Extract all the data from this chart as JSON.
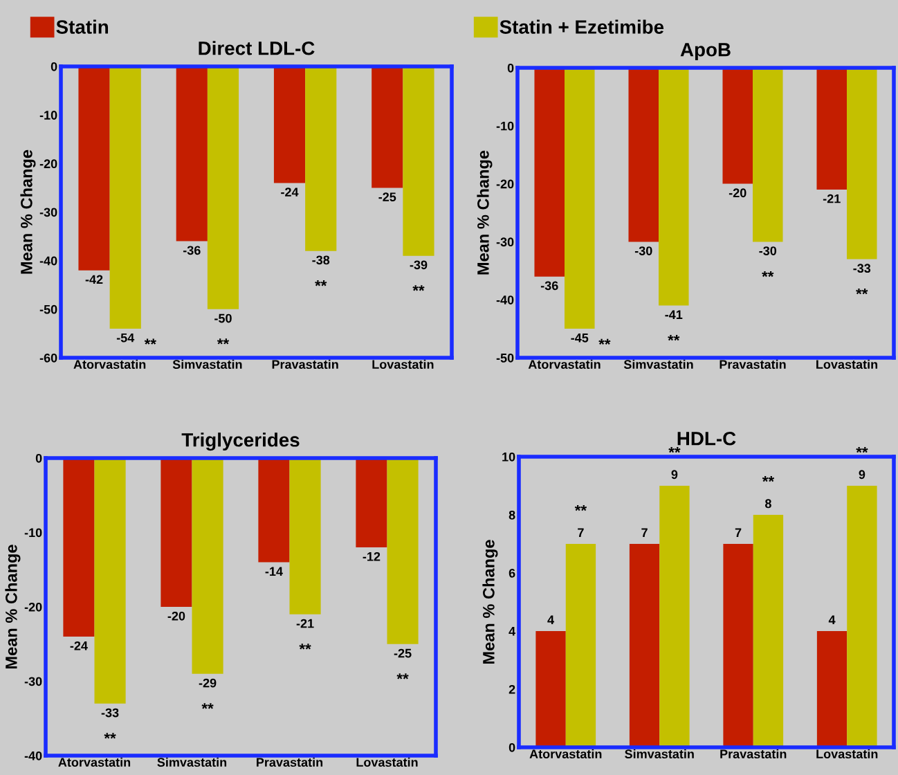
{
  "chart_data": [
    {
      "type": "bar",
      "title": "Direct LDL-C",
      "ylabel": "Mean % Change",
      "categories": [
        "Atorvastatin",
        "Simvastatin",
        "Pravastatin",
        "Lovastatin"
      ],
      "ylim": [
        -60,
        0
      ],
      "yticks": [
        -60,
        -50,
        -40,
        -30,
        -20,
        -10,
        0
      ],
      "data_labels": true,
      "legend": "top",
      "grid": false,
      "series": [
        {
          "name": "Statin",
          "color": "#c41e00",
          "values": [
            -42,
            -36,
            -24,
            -25
          ]
        },
        {
          "name": "Statin + Ezetimibe",
          "color": "#c4c000",
          "values": [
            -54,
            -50,
            -38,
            -39
          ]
        }
      ],
      "annotations": [
        "**",
        "**",
        "**",
        "**"
      ]
    },
    {
      "type": "bar",
      "title": "ApoB",
      "ylabel": "Mean % Change",
      "categories": [
        "Atorvastatin",
        "Simvastatin",
        "Pravastatin",
        "Lovastatin"
      ],
      "ylim": [
        -50,
        0
      ],
      "yticks": [
        -50,
        -40,
        -30,
        -20,
        -10,
        0
      ],
      "data_labels": true,
      "grid": false,
      "series": [
        {
          "color": "#c41e00",
          "values": [
            -36,
            -30,
            -20,
            -21
          ]
        },
        {
          "color": "#c4c000",
          "values": [
            -45,
            -41,
            -30,
            -33
          ]
        }
      ],
      "annotations": [
        "**",
        "**",
        "**",
        "**"
      ]
    },
    {
      "type": "bar",
      "title": "Triglycerides",
      "ylabel": "Mean % Change",
      "categories": [
        "Atorvastatin",
        "Simvastatin",
        "Pravastatin",
        "Lovastatin"
      ],
      "ylim": [
        -40,
        0
      ],
      "yticks": [
        -40,
        -30,
        -20,
        -10,
        0
      ],
      "data_labels": true,
      "grid": false,
      "series": [
        {
          "color": "#c41e00",
          "values": [
            -24,
            -20,
            -14,
            -12
          ]
        },
        {
          "color": "#c4c000",
          "values": [
            -33,
            -29,
            -21,
            -25
          ]
        }
      ],
      "annotations": [
        "**",
        "**",
        "**",
        "**"
      ]
    },
    {
      "type": "bar",
      "title": "HDL-C",
      "ylabel": "Mean % Change",
      "categories": [
        "Atorvastatin",
        "Simvastatin",
        "Pravastatin",
        "Lovastatin"
      ],
      "ylim": [
        0,
        10
      ],
      "yticks": [
        0,
        2,
        4,
        6,
        8,
        10
      ],
      "data_labels": true,
      "grid": false,
      "series": [
        {
          "color": "#c41e00",
          "values": [
            4,
            7,
            7,
            4
          ]
        },
        {
          "color": "#c4c000",
          "values": [
            7,
            9,
            8,
            9
          ]
        }
      ],
      "annotations": [
        "**",
        "**",
        "**",
        "**"
      ]
    }
  ]
}
